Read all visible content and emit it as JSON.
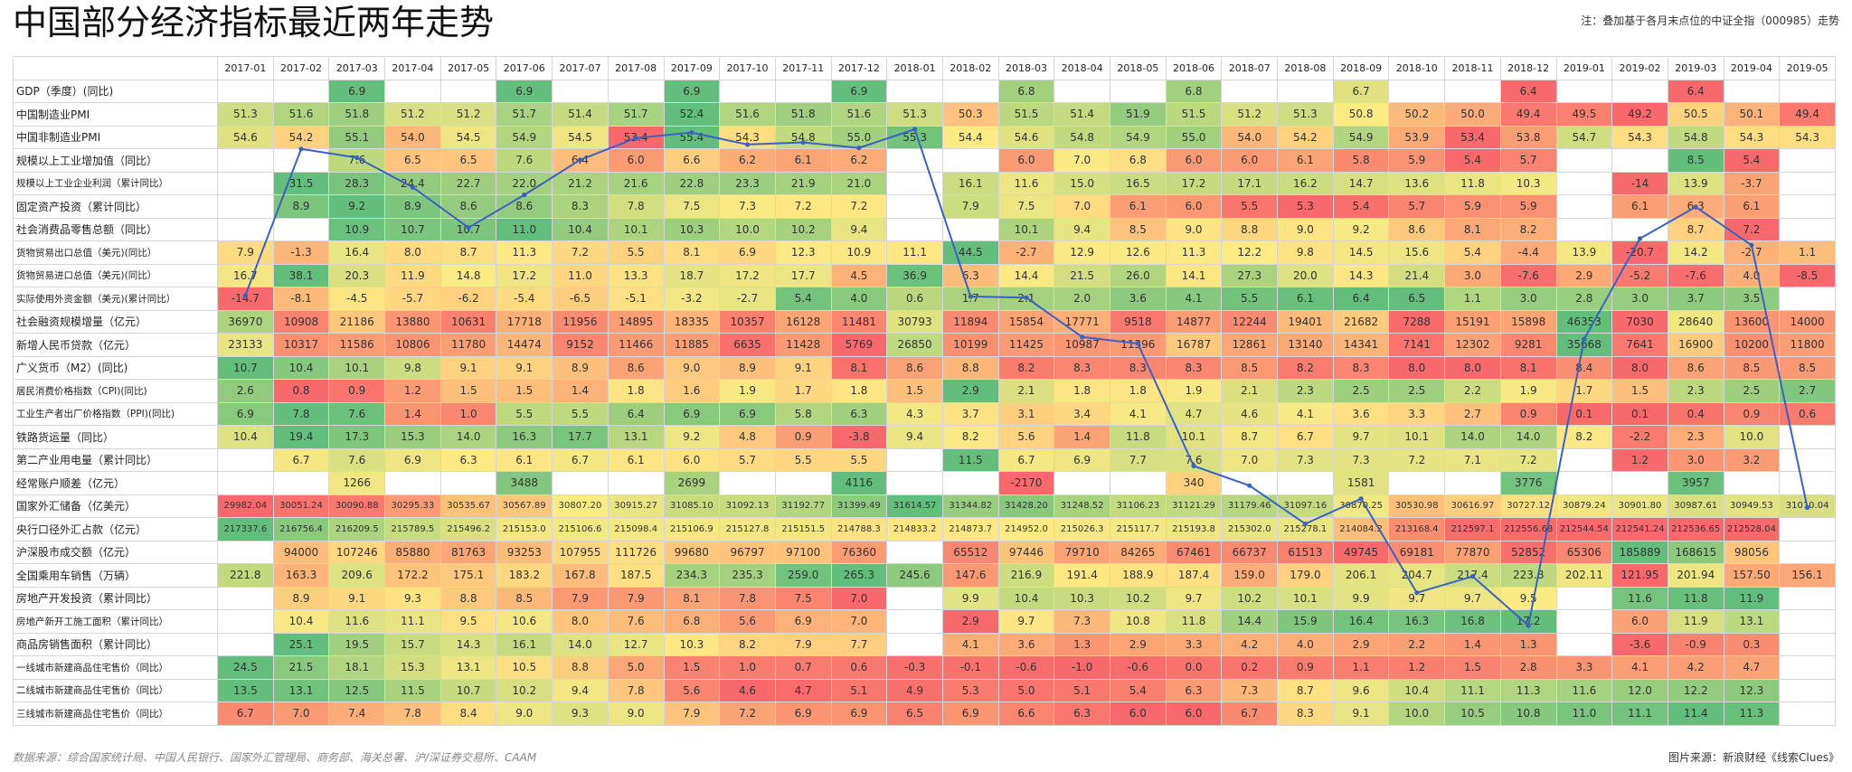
{
  "title": "中国部分经济指标最近两年走势",
  "note": "注：叠加基于各月末点位的中证全指（000985）走势",
  "footer_left": "数据来源：综合国家统计局、中国人民银行、国家外汇管理局、商务部、海关总署、沪/深证券交易所、CAAM",
  "footer_right": "图片来源：新浪财经《线索Clues》",
  "chart_data": {
    "type": "table",
    "columns": [
      "2017-01",
      "2017-02",
      "2017-03",
      "2017-04",
      "2017-05",
      "2017-06",
      "2017-07",
      "2017-08",
      "2017-09",
      "2017-10",
      "2017-11",
      "2017-12",
      "2018-01",
      "2018-02",
      "2018-03",
      "2018-04",
      "2018-05",
      "2018-06",
      "2018-07",
      "2018-08",
      "2018-09",
      "2018-10",
      "2018-11",
      "2018-12",
      "2019-01",
      "2019-02",
      "2019-03",
      "2019-04",
      "2019-05"
    ],
    "rows": [
      {
        "label": "GDP（季度）(同比)",
        "cells": [
          "",
          "",
          "6.9",
          "",
          "",
          "6.9",
          "",
          "",
          "6.9",
          "",
          "",
          "6.9",
          "",
          "",
          "6.8",
          "",
          "",
          "6.8",
          "",
          "",
          "6.7",
          "",
          "",
          "6.4",
          "",
          "",
          "6.4",
          "",
          ""
        ]
      },
      {
        "label": "中国制造业PMI",
        "cells": [
          "51.3",
          "51.6",
          "51.8",
          "51.2",
          "51.2",
          "51.7",
          "51.4",
          "51.7",
          "52.4",
          "51.6",
          "51.8",
          "51.6",
          "51.3",
          "50.3",
          "51.5",
          "51.4",
          "51.9",
          "51.5",
          "51.2",
          "51.3",
          "50.8",
          "50.2",
          "50.0",
          "49.4",
          "49.5",
          "49.2",
          "50.5",
          "50.1",
          "49.4"
        ]
      },
      {
        "label": "中国非制造业PMI",
        "cells": [
          "54.6",
          "54.2",
          "55.1",
          "54.0",
          "54.5",
          "54.9",
          "54.5",
          "53.4",
          "55.4",
          "54.3",
          "54.8",
          "55.0",
          "55.3",
          "54.4",
          "54.6",
          "54.8",
          "54.9",
          "55.0",
          "54.0",
          "54.2",
          "54.9",
          "53.9",
          "53.4",
          "53.8",
          "54.7",
          "54.3",
          "54.8",
          "54.3",
          "54.3"
        ]
      },
      {
        "label": "规模以上工业增加值（同比）",
        "cells": [
          "",
          "",
          "7.6",
          "6.5",
          "6.5",
          "7.6",
          "6.4",
          "6.0",
          "6.6",
          "6.2",
          "6.1",
          "6.2",
          "",
          "",
          "6.0",
          "7.0",
          "6.8",
          "6.0",
          "6.0",
          "6.1",
          "5.8",
          "5.9",
          "5.4",
          "5.7",
          "",
          "",
          "8.5",
          "5.4",
          ""
        ]
      },
      {
        "label": "规模以上工业企业利润（累计同比）",
        "cells": [
          "",
          "31.5",
          "28.3",
          "24.4",
          "22.7",
          "22.0",
          "21.2",
          "21.6",
          "22.8",
          "23.3",
          "21.9",
          "21.0",
          "",
          "16.1",
          "11.6",
          "15.0",
          "16.5",
          "17.2",
          "17.1",
          "16.2",
          "14.7",
          "13.6",
          "11.8",
          "10.3",
          "",
          "-14",
          "13.9",
          "-3.7",
          ""
        ]
      },
      {
        "label": "固定资产投资（累计同比）",
        "cells": [
          "",
          "8.9",
          "9.2",
          "8.9",
          "8.6",
          "8.6",
          "8.3",
          "7.8",
          "7.5",
          "7.3",
          "7.2",
          "7.2",
          "",
          "7.9",
          "7.5",
          "7.0",
          "6.1",
          "6.0",
          "5.5",
          "5.3",
          "5.4",
          "5.7",
          "5.9",
          "5.9",
          "",
          "6.1",
          "6.3",
          "6.1",
          ""
        ]
      },
      {
        "label": "社会消费品零售总额（同比）",
        "cells": [
          "",
          "",
          "10.9",
          "10.7",
          "10.7",
          "11.0",
          "10.4",
          "10.1",
          "10.3",
          "10.0",
          "10.2",
          "9.4",
          "",
          "",
          "10.1",
          "9.4",
          "8.5",
          "9.0",
          "8.8",
          "9.0",
          "9.2",
          "8.6",
          "8.1",
          "8.2",
          "",
          "",
          "8.7",
          "7.2",
          ""
        ]
      },
      {
        "label": "货物贸易出口总值（美元)(同比）",
        "cells": [
          "7.9",
          "-1.3",
          "16.4",
          "8.0",
          "8.7",
          "11.3",
          "7.2",
          "5.5",
          "8.1",
          "6.9",
          "12.3",
          "10.9",
          "11.1",
          "44.5",
          "-2.7",
          "12.9",
          "12.6",
          "11.3",
          "12.2",
          "9.8",
          "14.5",
          "15.6",
          "5.4",
          "-4.4",
          "13.9",
          "-20.7",
          "14.2",
          "-2.7",
          "1.1"
        ]
      },
      {
        "label": "货物贸易进口总值（美元)(同比）",
        "cells": [
          "16.7",
          "38.1",
          "20.3",
          "11.9",
          "14.8",
          "17.2",
          "11.0",
          "13.3",
          "18.7",
          "17.2",
          "17.7",
          "4.5",
          "36.9",
          "6.3",
          "14.4",
          "21.5",
          "26.0",
          "14.1",
          "27.3",
          "20.0",
          "14.3",
          "21.4",
          "3.0",
          "-7.6",
          "2.9",
          "-5.2",
          "-7.6",
          "4.0",
          "-8.5"
        ]
      },
      {
        "label": "实际使用外资金额（美元)(累计同比）",
        "cells": [
          "-14.7",
          "-8.1",
          "-4.5",
          "-5.7",
          "-6.2",
          "-5.4",
          "-6.5",
          "-5.1",
          "-3.2",
          "-2.7",
          "5.4",
          "4.0",
          "0.6",
          "1.7",
          "2.1",
          "2.0",
          "3.6",
          "4.1",
          "5.5",
          "6.1",
          "6.4",
          "6.5",
          "1.1",
          "3.0",
          "2.8",
          "3.0",
          "3.7",
          "3.5",
          ""
        ]
      },
      {
        "label": "社会融资规模增量（亿元）",
        "cells": [
          "36970",
          "10908",
          "21186",
          "13880",
          "10631",
          "17718",
          "11956",
          "14895",
          "18335",
          "10357",
          "16128",
          "11481",
          "30793",
          "11894",
          "15854",
          "17771",
          "9518",
          "14877",
          "12244",
          "19401",
          "21682",
          "7288",
          "15191",
          "15898",
          "46353",
          "7030",
          "28640",
          "13600",
          "14000"
        ]
      },
      {
        "label": "新增人民币贷款（亿元）",
        "cells": [
          "23133",
          "10317",
          "11586",
          "10806",
          "11780",
          "14474",
          "9152",
          "11466",
          "11885",
          "6635",
          "11428",
          "5769",
          "26850",
          "10199",
          "11425",
          "10987",
          "11396",
          "16787",
          "12861",
          "13140",
          "14341",
          "7141",
          "12302",
          "9281",
          "35668",
          "7641",
          "16900",
          "10200",
          "11800"
        ]
      },
      {
        "label": "广义货币（M2）(同比)",
        "cells": [
          "10.7",
          "10.4",
          "10.1",
          "9.8",
          "9.1",
          "9.1",
          "8.9",
          "8.6",
          "9.0",
          "8.9",
          "9.1",
          "8.1",
          "8.6",
          "8.8",
          "8.2",
          "8.3",
          "8.3",
          "8.3",
          "8.5",
          "8.2",
          "8.3",
          "8.0",
          "8.0",
          "8.1",
          "8.4",
          "8.0",
          "8.6",
          "8.5",
          "8.5"
        ]
      },
      {
        "label": "居民消费价格指数（CPI)(同比)",
        "cells": [
          "2.6",
          "0.8",
          "0.9",
          "1.2",
          "1.5",
          "1.5",
          "1.4",
          "1.8",
          "1.6",
          "1.9",
          "1.7",
          "1.8",
          "1.5",
          "2.9",
          "2.1",
          "1.8",
          "1.8",
          "1.9",
          "2.1",
          "2.3",
          "2.5",
          "2.5",
          "2.2",
          "1.9",
          "1.7",
          "1.5",
          "2.3",
          "2.5",
          "2.7"
        ]
      },
      {
        "label": "工业生产者出厂价格指数（PPI)(同比)",
        "cells": [
          "6.9",
          "7.8",
          "7.6",
          "1.4",
          "1.0",
          "5.5",
          "5.5",
          "6.4",
          "6.9",
          "6.9",
          "5.8",
          "6.3",
          "4.3",
          "3.7",
          "3.1",
          "3.4",
          "4.1",
          "4.7",
          "4.6",
          "4.1",
          "3.6",
          "3.3",
          "2.7",
          "0.9",
          "0.1",
          "0.1",
          "0.4",
          "0.9",
          "0.6"
        ]
      },
      {
        "label": "铁路货运量（同比）",
        "cells": [
          "10.4",
          "19.4",
          "17.3",
          "15.3",
          "14.0",
          "16.3",
          "17.7",
          "13.1",
          "9.2",
          "4.8",
          "0.9",
          "-3.8",
          "9.4",
          "8.2",
          "5.6",
          "1.4",
          "11.8",
          "10.1",
          "8.7",
          "6.7",
          "9.7",
          "10.1",
          "14.0",
          "14.0",
          "8.2",
          "-2.2",
          "2.3",
          "10.0",
          ""
        ]
      },
      {
        "label": "第二产业用电量（累计同比）",
        "cells": [
          "",
          "6.7",
          "7.6",
          "6.9",
          "6.3",
          "6.1",
          "6.7",
          "6.1",
          "6.0",
          "5.7",
          "5.5",
          "5.5",
          "",
          "11.5",
          "6.7",
          "6.9",
          "7.7",
          "7.6",
          "7.0",
          "7.3",
          "7.3",
          "7.2",
          "7.1",
          "7.2",
          "",
          "1.2",
          "3.0",
          "3.2",
          ""
        ]
      },
      {
        "label": "经常账户顺差（亿元）",
        "cells": [
          "",
          "",
          "1266",
          "",
          "",
          "3488",
          "",
          "",
          "2699",
          "",
          "",
          "4116",
          "",
          "",
          "-2170",
          "",
          "",
          "340",
          "",
          "",
          "1581",
          "",
          "",
          "3776",
          "",
          "",
          "3957",
          "",
          ""
        ]
      },
      {
        "label": "国家外汇储备（亿美元）",
        "cells": [
          "29982.04",
          "30051.24",
          "30090.88",
          "30295.33",
          "30535.67",
          "30567.89",
          "30807.20",
          "30915.27",
          "31085.10",
          "31092.13",
          "31192.77",
          "31399.49",
          "31614.57",
          "31344.82",
          "31428.20",
          "31248.52",
          "31106.23",
          "31121.29",
          "31179.46",
          "31097.16",
          "30870.25",
          "30530.98",
          "30616.97",
          "30727.12",
          "30879.24",
          "30901.80",
          "30987.61",
          "30949.53",
          "31010.04"
        ]
      },
      {
        "label": "央行口径外汇占款（亿元）",
        "cells": [
          "217337.6",
          "216756.4",
          "216209.5",
          "215789.5",
          "215496.2",
          "215153.0",
          "215106.6",
          "215098.4",
          "215106.9",
          "215127.8",
          "215151.5",
          "214788.3",
          "214833.2",
          "214873.7",
          "214952.0",
          "215026.3",
          "215117.7",
          "215193.8",
          "215302.0",
          "215278.1",
          "214084.2",
          "213168.4",
          "212597.1",
          "212556.68",
          "212544.54",
          "212541.24",
          "212536.65",
          "212528.04",
          ""
        ]
      },
      {
        "label": "沪深股市成交额（亿元）",
        "cells": [
          "",
          "94000",
          "107246",
          "85880",
          "81763",
          "93253",
          "107955",
          "111726",
          "99680",
          "96797",
          "97100",
          "76360",
          "",
          "65512",
          "97446",
          "79710",
          "84265",
          "67461",
          "66737",
          "61513",
          "49745",
          "69181",
          "77870",
          "52852",
          "65306",
          "185889",
          "168615",
          "98056",
          ""
        ]
      },
      {
        "label": "全国乘用车销售（万辆）",
        "cells": [
          "221.8",
          "163.3",
          "209.6",
          "172.2",
          "175.1",
          "183.2",
          "167.8",
          "187.5",
          "234.3",
          "235.3",
          "259.0",
          "265.3",
          "245.6",
          "147.6",
          "216.9",
          "191.4",
          "188.9",
          "187.4",
          "159.0",
          "179.0",
          "206.1",
          "204.7",
          "217.4",
          "223.8",
          "202.11",
          "121.95",
          "201.94",
          "157.50",
          "156.1"
        ]
      },
      {
        "label": "房地产开发投资（累计同比）",
        "cells": [
          "",
          "8.9",
          "9.1",
          "9.3",
          "8.8",
          "8.5",
          "7.9",
          "7.9",
          "8.1",
          "7.8",
          "7.5",
          "7.0",
          "",
          "9.9",
          "10.4",
          "10.3",
          "10.2",
          "9.7",
          "10.2",
          "10.1",
          "9.9",
          "9.7",
          "9.7",
          "9.5",
          "",
          "11.6",
          "11.8",
          "11.9",
          ""
        ]
      },
      {
        "label": "房地产新开工施工面积（累计同比）",
        "cells": [
          "",
          "10.4",
          "11.6",
          "11.1",
          "9.5",
          "10.6",
          "8.0",
          "7.6",
          "6.8",
          "5.6",
          "6.9",
          "7.0",
          "",
          "2.9",
          "9.7",
          "7.3",
          "10.8",
          "11.8",
          "14.4",
          "15.9",
          "16.4",
          "16.3",
          "16.8",
          "17.2",
          "",
          "6.0",
          "11.9",
          "13.1",
          ""
        ]
      },
      {
        "label": "商品房销售面积（累计同比）",
        "cells": [
          "",
          "25.1",
          "19.5",
          "15.7",
          "14.3",
          "16.1",
          "14.0",
          "12.7",
          "10.3",
          "8.2",
          "7.9",
          "7.7",
          "",
          "4.1",
          "3.6",
          "1.3",
          "2.9",
          "3.3",
          "4.2",
          "4.0",
          "2.9",
          "2.2",
          "1.4",
          "1.3",
          "",
          "-3.6",
          "-0.9",
          "0.3",
          ""
        ]
      },
      {
        "label": "一线城市新建商品住宅售价（同比）",
        "cells": [
          "24.5",
          "21.5",
          "18.1",
          "15.3",
          "13.1",
          "10.5",
          "8.8",
          "5.0",
          "1.5",
          "1.0",
          "0.7",
          "0.6",
          "-0.3",
          "-0.1",
          "-0.6",
          "-1.0",
          "-0.6",
          "0.0",
          "0.2",
          "0.9",
          "1.1",
          "1.2",
          "1.5",
          "2.8",
          "3.3",
          "4.1",
          "4.2",
          "4.7",
          ""
        ]
      },
      {
        "label": "二线城市新建商品住宅售价（同比）",
        "cells": [
          "13.5",
          "13.1",
          "12.5",
          "11.5",
          "10.7",
          "10.2",
          "9.4",
          "7.8",
          "5.6",
          "4.6",
          "4.7",
          "5.1",
          "4.9",
          "5.3",
          "5.0",
          "5.1",
          "5.4",
          "6.3",
          "7.3",
          "8.7",
          "9.6",
          "10.4",
          "11.1",
          "11.3",
          "11.6",
          "12.0",
          "12.2",
          "12.3",
          ""
        ]
      },
      {
        "label": "三线城市新建商品住宅售价（同比）",
        "cells": [
          "6.7",
          "7.0",
          "7.4",
          "7.8",
          "8.4",
          "9.0",
          "9.3",
          "9.0",
          "7.9",
          "7.2",
          "6.9",
          "6.9",
          "6.5",
          "6.9",
          "6.6",
          "6.3",
          "6.0",
          "6.0",
          "6.7",
          "8.3",
          "9.1",
          "10.0",
          "10.5",
          "10.8",
          "11.0",
          "11.1",
          "11.4",
          "11.3",
          ""
        ]
      }
    ],
    "overlay_series": {
      "name": "中证全指（000985）",
      "type": "line",
      "color": "#3a62c4",
      "values": [
        5.2,
        18.6,
        17.8,
        15.1,
        11.4,
        14.4,
        17.6,
        19.6,
        20.1,
        19.0,
        19.2,
        18.7,
        20.4,
        5.1,
        5.0,
        1.4,
        0.8,
        -10.4,
        -12.2,
        -15.7,
        -13.4,
        -22.0,
        -20.5,
        -25.0,
        1.2,
        10.4,
        13.3,
        9.8,
        -14.2
      ]
    }
  }
}
